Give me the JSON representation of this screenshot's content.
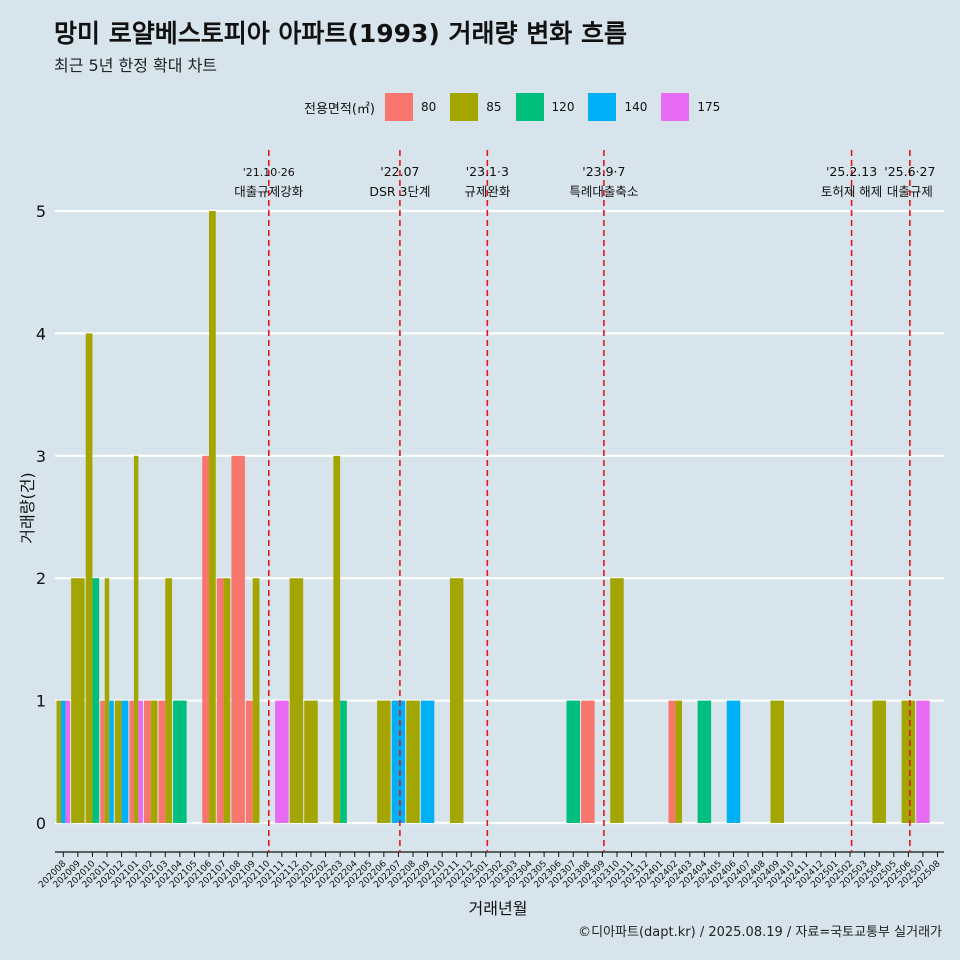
{
  "chart_data": {
    "type": "bar",
    "title": "망미 로얄베스토피아 아파트(1993) 거래량 변화 흐름",
    "subtitle": "최근 5년 한정 확대 차트",
    "xlabel": "거래년월",
    "ylabel": "거래량(건)",
    "ylim": [
      0,
      5
    ],
    "yticks": [
      0,
      1,
      2,
      3,
      4,
      5
    ],
    "grid": true,
    "legend_title": "전용면적(㎡)",
    "legend_position": "top",
    "categories": [
      "202008",
      "202009",
      "202010",
      "202011",
      "202012",
      "202101",
      "202102",
      "202103",
      "202104",
      "202105",
      "202106",
      "202107",
      "202108",
      "202109",
      "202110",
      "202111",
      "202112",
      "202201",
      "202202",
      "202203",
      "202204",
      "202205",
      "202206",
      "202207",
      "202208",
      "202209",
      "202210",
      "202211",
      "202212",
      "202301",
      "202302",
      "202303",
      "202304",
      "202305",
      "202306",
      "202307",
      "202308",
      "202309",
      "202310",
      "202311",
      "202312",
      "202401",
      "202402",
      "202403",
      "202404",
      "202405",
      "202406",
      "202407",
      "202408",
      "202409",
      "202410",
      "202411",
      "202412",
      "202501",
      "202502",
      "202503",
      "202504",
      "202505",
      "202506",
      "202507",
      "202508"
    ],
    "series": [
      {
        "name": "80",
        "color": "#f8766d",
        "values": [
          0,
          0,
          0,
          1,
          0,
          1,
          1,
          1,
          0,
          0,
          3,
          2,
          3,
          1,
          0,
          0,
          0,
          0,
          0,
          0,
          0,
          0,
          0,
          0,
          0,
          0,
          0,
          0,
          0,
          0,
          0,
          0,
          0,
          0,
          0,
          0,
          1,
          0,
          0,
          0,
          0,
          0,
          1,
          0,
          0,
          0,
          0,
          0,
          0,
          0,
          0,
          0,
          0,
          0,
          0,
          0,
          0,
          0,
          0,
          0,
          0
        ]
      },
      {
        "name": "85",
        "color": "#a3a500",
        "values": [
          1,
          2,
          4,
          2,
          1,
          3,
          1,
          2,
          0,
          0,
          5,
          2,
          0,
          2,
          0,
          0,
          2,
          1,
          0,
          3,
          0,
          0,
          1,
          0,
          1,
          0,
          0,
          2,
          0,
          0,
          0,
          0,
          0,
          0,
          0,
          0,
          0,
          0,
          2,
          0,
          0,
          0,
          1,
          0,
          0,
          0,
          0,
          0,
          0,
          1,
          0,
          0,
          0,
          0,
          0,
          0,
          1,
          0,
          1,
          0,
          0
        ]
      },
      {
        "name": "120",
        "color": "#00bf7d",
        "values": [
          0,
          0,
          2,
          0,
          0,
          0,
          0,
          0,
          1,
          0,
          0,
          0,
          0,
          0,
          0,
          0,
          0,
          0,
          0,
          1,
          0,
          0,
          0,
          0,
          0,
          0,
          0,
          0,
          0,
          0,
          0,
          0,
          0,
          0,
          0,
          1,
          0,
          0,
          0,
          0,
          0,
          0,
          0,
          0,
          1,
          0,
          0,
          0,
          0,
          0,
          0,
          0,
          0,
          0,
          0,
          0,
          0,
          0,
          0,
          0,
          0
        ]
      },
      {
        "name": "140",
        "color": "#00b0f6",
        "values": [
          1,
          0,
          0,
          1,
          1,
          0,
          0,
          0,
          0,
          0,
          0,
          0,
          0,
          0,
          0,
          0,
          0,
          0,
          0,
          0,
          0,
          0,
          0,
          1,
          0,
          1,
          0,
          0,
          0,
          0,
          0,
          0,
          0,
          0,
          0,
          0,
          0,
          0,
          0,
          0,
          0,
          0,
          0,
          0,
          0,
          0,
          1,
          0,
          0,
          0,
          0,
          0,
          0,
          0,
          0,
          0,
          0,
          0,
          0,
          0,
          0
        ]
      },
      {
        "name": "175",
        "color": "#e76bf3",
        "values": [
          1,
          0,
          0,
          0,
          0,
          1,
          0,
          0,
          0,
          0,
          0,
          0,
          0,
          0,
          0,
          1,
          0,
          0,
          0,
          0,
          0,
          0,
          0,
          0,
          0,
          0,
          0,
          0,
          0,
          0,
          0,
          0,
          0,
          0,
          0,
          0,
          0,
          0,
          0,
          0,
          0,
          0,
          0,
          0,
          0,
          0,
          0,
          0,
          0,
          0,
          0,
          0,
          0,
          0,
          0,
          0,
          0,
          0,
          0,
          1,
          0
        ]
      }
    ],
    "annotations": [
      {
        "x": "202110",
        "label_top": "'21.10·26",
        "label_bottom": "대출규제강화"
      },
      {
        "x": "202207",
        "label_top": "'22.07",
        "label_bottom": "DSR 3단계"
      },
      {
        "x": "202301",
        "label_top": "'23.1·3",
        "label_bottom": "규제완화"
      },
      {
        "x": "202309",
        "label_top": "'23.9·7",
        "label_bottom": "특례대출축소"
      },
      {
        "x": "202502",
        "label_top": "'25.2.13",
        "label_bottom": "토허제 해제"
      },
      {
        "x": "202506",
        "label_top": "'25.6·27",
        "label_bottom": "대출규제"
      }
    ]
  },
  "caption": "©디아파트(dapt.kr) / 2025.08.19 / 자료=국토교통부 실거래가"
}
